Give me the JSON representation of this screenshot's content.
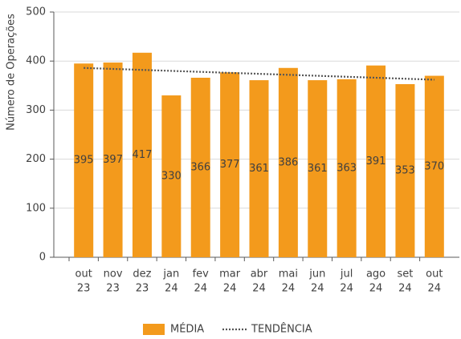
{
  "chart_data": {
    "type": "bar",
    "y_label": "Número de Operações",
    "categories": [
      [
        "out",
        "23"
      ],
      [
        "nov",
        "23"
      ],
      [
        "dez",
        "23"
      ],
      [
        "jan",
        "24"
      ],
      [
        "fev",
        "24"
      ],
      [
        "mar",
        "24"
      ],
      [
        "abr",
        "24"
      ],
      [
        "mai",
        "24"
      ],
      [
        "jun",
        "24"
      ],
      [
        "jul",
        "24"
      ],
      [
        "ago",
        "24"
      ],
      [
        "set",
        "24"
      ],
      [
        "out",
        "24"
      ]
    ],
    "series": [
      {
        "name": "MÉDIA",
        "color": "#f39a1c",
        "values": [
          395,
          397,
          417,
          330,
          366,
          377,
          361,
          386,
          361,
          363,
          391,
          353,
          370
        ]
      },
      {
        "name": "TENDÊNCIA",
        "color": "#555555",
        "line_style": "dotted",
        "values": [
          386,
          384,
          382,
          380,
          378,
          376,
          374,
          372,
          370,
          368,
          366,
          364,
          362
        ]
      }
    ],
    "ylim": [
      0,
      500
    ],
    "yticks": [
      0,
      100,
      200,
      300,
      400,
      500
    ],
    "grid": true
  }
}
